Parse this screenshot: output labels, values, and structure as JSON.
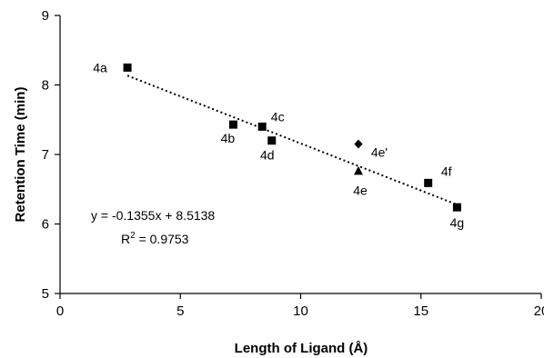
{
  "chart_data": {
    "type": "scatter",
    "title": "",
    "xlabel": "Length of Ligand (Å)",
    "ylabel": "Retention Time (min)",
    "xlim": [
      0,
      20
    ],
    "ylim": [
      5,
      9
    ],
    "x_ticks": [
      0,
      5,
      10,
      15,
      20
    ],
    "y_ticks": [
      5,
      6,
      7,
      8,
      9
    ],
    "x_tick_labels": [
      "0",
      "5",
      "10",
      "15",
      "20"
    ],
    "y_tick_labels": [
      "5",
      "6",
      "7",
      "8",
      "9"
    ],
    "grid": false,
    "legend": "none",
    "points": [
      {
        "label": "4a",
        "x": 2.8,
        "y": 8.25,
        "marker": "square"
      },
      {
        "label": "4b",
        "x": 7.2,
        "y": 7.43,
        "marker": "square"
      },
      {
        "label": "4c",
        "x": 8.4,
        "y": 7.4,
        "marker": "square"
      },
      {
        "label": "4d",
        "x": 8.8,
        "y": 7.2,
        "marker": "square"
      },
      {
        "label": "4e'",
        "x": 12.4,
        "y": 7.15,
        "marker": "diamond"
      },
      {
        "label": "4e",
        "x": 12.4,
        "y": 6.76,
        "marker": "triangle"
      },
      {
        "label": "4f",
        "x": 15.3,
        "y": 6.59,
        "marker": "square"
      },
      {
        "label": "4g",
        "x": 16.5,
        "y": 6.24,
        "marker": "square"
      }
    ],
    "trendline": {
      "type": "linear",
      "slope": -0.1355,
      "intercept": 8.5138,
      "x_from": 2.8,
      "x_to": 16.5,
      "style": "dotted"
    },
    "equation_text": "y = -0.1355x + 8.5138",
    "r2_prefix": "R",
    "r2_sup": "2",
    "r2_value": " = 0.9753",
    "colors": {
      "marker": "#000000",
      "axis": "#000000"
    }
  }
}
